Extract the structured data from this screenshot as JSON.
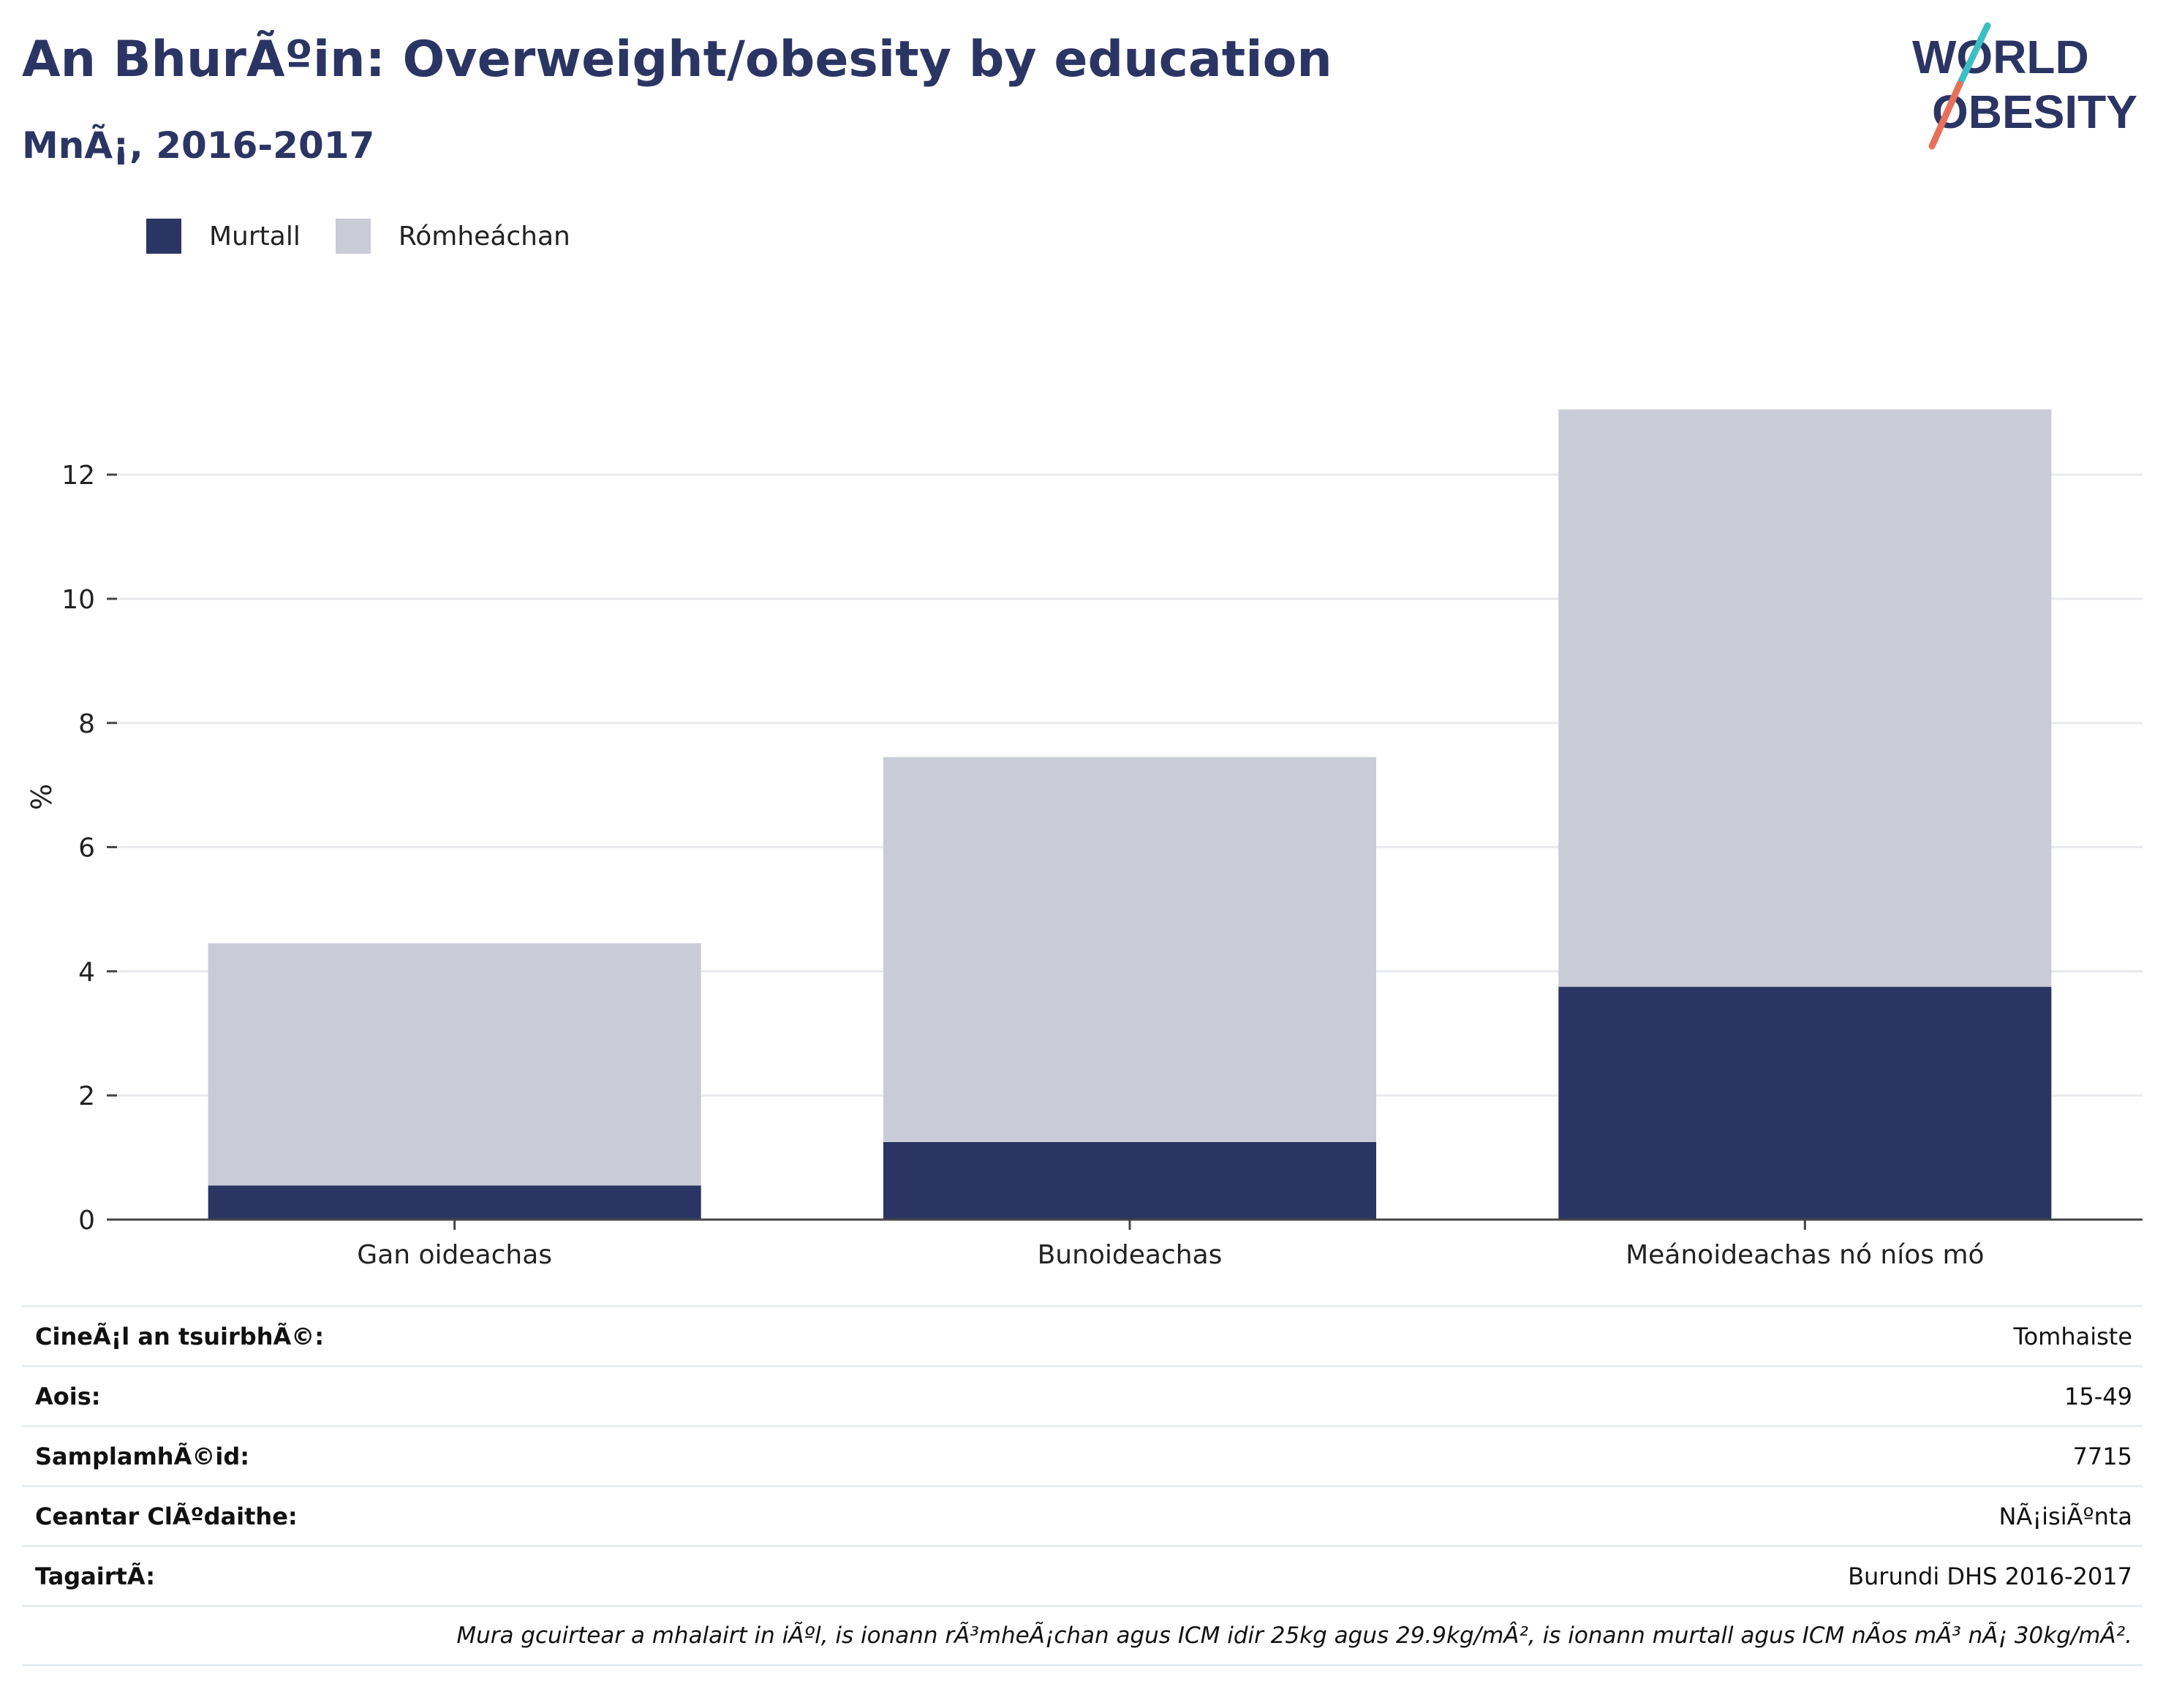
{
  "header": {
    "title": "An BhurÃºin: Overweight/obesity by education",
    "subtitle": "MnÃ¡, 2016-2017"
  },
  "logo": {
    "line1": "WORLD",
    "line2": "OBESITY",
    "colors": {
      "text": "#2b3564",
      "slash_top": "#3bbfc4",
      "slash_bottom": "#e8705a"
    }
  },
  "colors": {
    "murtall": "#2b3564",
    "romheachan": "#c9cbd6",
    "title": "#2b3564"
  },
  "chart_data": {
    "type": "bar",
    "stacked": true,
    "categories": [
      "Gan oideachas",
      "Bunoideachas",
      "Meánoideachas nó níos mó"
    ],
    "series": [
      {
        "name": "Murtall",
        "values": [
          0.55,
          1.25,
          3.75
        ]
      },
      {
        "name": "Rómheáchan",
        "values": [
          3.9,
          6.2,
          9.3
        ]
      }
    ],
    "ylabel": "%",
    "xlabel": "",
    "ylim": [
      0,
      13.05
    ],
    "yticks": [
      0,
      2,
      4,
      6,
      8,
      10,
      12
    ],
    "grid": true,
    "legend": "top-left"
  },
  "info_table": {
    "rows": [
      {
        "label": "CineÃ¡l an tsuirbhÃ©:",
        "value": "Tomhaiste"
      },
      {
        "label": "Aois:",
        "value": "15-49"
      },
      {
        "label": "SamplamhÃ©id:",
        "value": "7715"
      },
      {
        "label": "Ceantar ClÃºdaithe:",
        "value": "NÃ¡isiÃºnta"
      },
      {
        "label": "TagairtÃ:",
        "value": "Burundi DHS 2016-2017"
      }
    ],
    "note": "Mura gcuirtear a mhalairt in iÃºl, is ionann rÃ³mheÃ¡chan agus ICM idir 25kg agus 29.9kg/mÂ², is ionann murtall agus ICM nÃ­os mÃ³ nÃ¡ 30kg/mÂ²."
  }
}
